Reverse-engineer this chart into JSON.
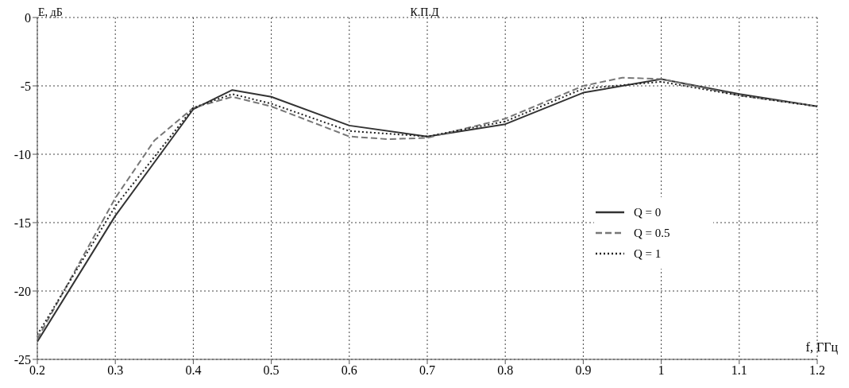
{
  "chart_data": {
    "type": "line",
    "title": "К.П.Д",
    "xlabel": "f, ГГц",
    "ylabel": "Е, дБ",
    "xlim": [
      0.2,
      1.2
    ],
    "xticks": [
      0.2,
      0.3,
      0.4,
      0.5,
      0.6,
      0.7,
      0.8,
      0.9,
      1,
      1.1,
      1.2
    ],
    "ylim": [
      -25,
      0
    ],
    "yticks": [
      -25,
      -20,
      -15,
      -10,
      -5,
      0
    ],
    "grid": true,
    "legend": "right",
    "marker": "none",
    "series": [
      {
        "name": "Q = 0",
        "color": "#333333",
        "line_style": "solid",
        "x": [
          0.2,
          0.3,
          0.4,
          0.45,
          0.5,
          0.6,
          0.7,
          0.8,
          0.9,
          1.0,
          1.1,
          1.2
        ],
        "values": [
          -23.7,
          -14.5,
          -6.7,
          -5.3,
          -5.8,
          -7.9,
          -8.7,
          -7.8,
          -5.5,
          -4.5,
          -5.6,
          -6.5
        ]
      },
      {
        "name": "Q = 0.5",
        "color": "#777777",
        "line_style": "dashed",
        "x": [
          0.2,
          0.3,
          0.35,
          0.4,
          0.45,
          0.5,
          0.6,
          0.65,
          0.7,
          0.8,
          0.9,
          0.95,
          1.0,
          1.1,
          1.2
        ],
        "values": [
          -23.5,
          -13.2,
          -9,
          -6.6,
          -5.8,
          -6.5,
          -8.7,
          -8.9,
          -8.8,
          -7.4,
          -5.0,
          -4.4,
          -4.5,
          -5.7,
          -6.5
        ]
      },
      {
        "name": "Q = 1",
        "color": "#222222",
        "line_style": "dotted",
        "x": [
          0.2,
          0.3,
          0.4,
          0.45,
          0.5,
          0.6,
          0.7,
          0.8,
          0.9,
          1.0,
          1.1,
          1.2
        ],
        "values": [
          -23.2,
          -13.8,
          -6.6,
          -5.6,
          -6.3,
          -8.3,
          -8.7,
          -7.6,
          -5.2,
          -4.7,
          -5.7,
          -6.5
        ]
      }
    ]
  }
}
